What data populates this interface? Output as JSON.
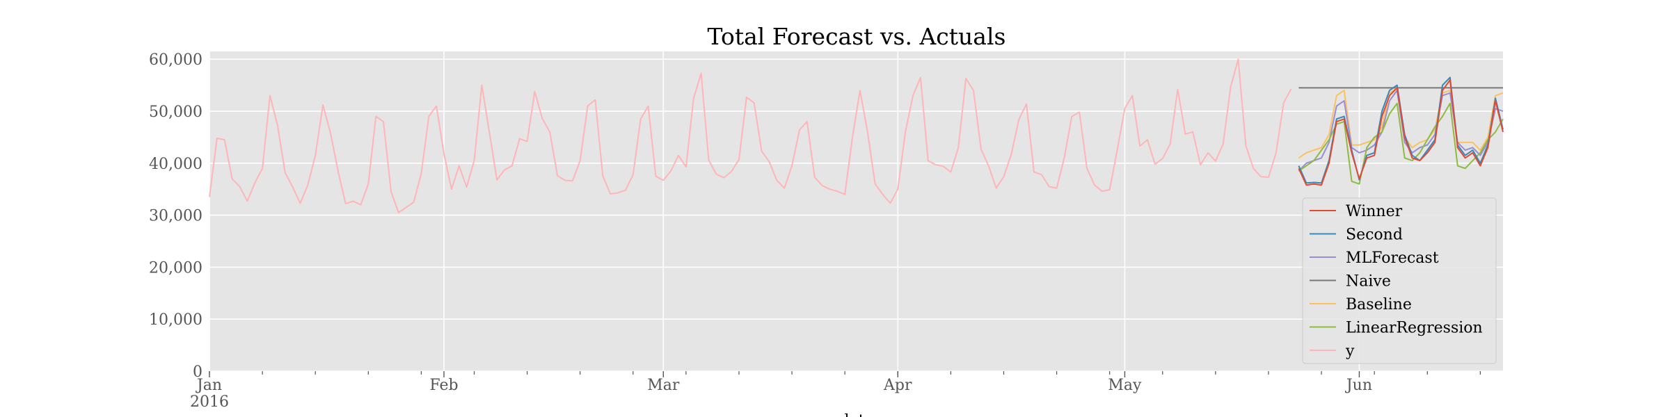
{
  "chart_data": {
    "type": "line",
    "title": "Total Forecast vs. Actuals",
    "xlabel": "date",
    "ylabel": "",
    "xlim": [
      "2016-01-01",
      "2016-06-20"
    ],
    "ylim": [
      0,
      61500
    ],
    "yticks": [
      0,
      10000,
      20000,
      30000,
      40000,
      50000,
      60000
    ],
    "ytick_labels": [
      "0",
      "10,000",
      "20,000",
      "30,000",
      "40,000",
      "50,000",
      "60,000"
    ],
    "xticks": [
      {
        "date": "2016-01-01",
        "label": "Jan",
        "sublabel": "2016"
      },
      {
        "date": "2016-02-01",
        "label": "Feb",
        "sublabel": ""
      },
      {
        "date": "2016-03-01",
        "label": "Mar",
        "sublabel": ""
      },
      {
        "date": "2016-04-01",
        "label": "Apr",
        "sublabel": ""
      },
      {
        "date": "2016-05-01",
        "label": "May",
        "sublabel": ""
      },
      {
        "date": "2016-06-01",
        "label": "Jun",
        "sublabel": ""
      }
    ],
    "grid": true,
    "legend_position": "lower-right",
    "background": "#e5e5e5",
    "forecast_start": "2016-05-24",
    "series": [
      {
        "name": "Winner",
        "color": "#e24a33",
        "values": [
          39000,
          35800,
          36000,
          35800,
          40000,
          48000,
          48500,
          42000,
          37000,
          41000,
          41500,
          49000,
          53000,
          54500,
          45000,
          41000,
          40500,
          42000,
          44000,
          54000,
          56000,
          43000,
          41000,
          42000,
          39500,
          43000,
          52000,
          46000
        ]
      },
      {
        "name": "Second",
        "color": "#348abd",
        "values": [
          39500,
          36200,
          36300,
          36200,
          40500,
          48500,
          49000,
          42500,
          36800,
          41500,
          42000,
          50000,
          54000,
          55000,
          45500,
          41500,
          40500,
          42500,
          44500,
          55000,
          56500,
          43500,
          41500,
          42500,
          40000,
          43500,
          52500,
          46500
        ]
      },
      {
        "name": "MLForecast",
        "color": "#988ed5",
        "values": [
          38500,
          40000,
          40500,
          41000,
          44000,
          51000,
          52000,
          43000,
          42000,
          42500,
          43500,
          46000,
          52000,
          54000,
          44000,
          42000,
          43000,
          43500,
          45500,
          53000,
          53500,
          44000,
          42500,
          43000,
          41500,
          44000,
          50500,
          50000
        ]
      },
      {
        "name": "Naive",
        "color": "#777777",
        "values": [
          54500,
          54500,
          54500,
          54500,
          54500,
          54500,
          54500,
          54500,
          54500,
          54500,
          54500,
          54500,
          54500,
          54500,
          54500,
          54500,
          54500,
          54500,
          54500,
          54500,
          54500,
          54500,
          54500,
          54500,
          54500,
          54500,
          54500,
          54500
        ]
      },
      {
        "name": "Baseline",
        "color": "#fbc15e",
        "values": [
          41000,
          42000,
          42500,
          43000,
          45500,
          53000,
          54000,
          43500,
          43500,
          44000,
          44500,
          47000,
          53500,
          54500,
          45000,
          43000,
          44000,
          44500,
          46500,
          53500,
          54000,
          44000,
          44000,
          44000,
          42500,
          45000,
          53000,
          53500
        ]
      },
      {
        "name": "LinearRegression",
        "color": "#8eba42",
        "values": [
          38500,
          39500,
          40500,
          42500,
          44500,
          47500,
          48000,
          36500,
          36000,
          43000,
          45000,
          46000,
          49500,
          51500,
          41000,
          40500,
          42000,
          44500,
          47000,
          49000,
          51500,
          39500,
          39000,
          40500,
          42000,
          44500,
          46000,
          48500
        ]
      },
      {
        "name": "y",
        "color": "#ffb5b8",
        "values": [
          33500,
          44800,
          44500,
          37000,
          35500,
          32700,
          36200,
          39000,
          53000,
          47300,
          38200,
          35400,
          32300,
          35800,
          41500,
          51200,
          45800,
          38500,
          32200,
          32700,
          32000,
          36000,
          49000,
          48000,
          34600,
          30500,
          31500,
          32500,
          38000,
          49000,
          51000,
          41800,
          35000,
          39500,
          35400,
          40500,
          55000,
          46000,
          36800,
          38700,
          39500,
          44700,
          44200,
          53800,
          48600,
          46000,
          37600,
          36700,
          36600,
          40500,
          51000,
          52200,
          37500,
          34100,
          34300,
          34800,
          37800,
          48500,
          51000,
          37500,
          36700,
          38500,
          41500,
          39300,
          52500,
          57300,
          40600,
          37900,
          37200,
          38400,
          40700,
          52700,
          51600,
          42300,
          40300,
          36700,
          35200,
          39500,
          46400,
          48000,
          37300,
          35700,
          35000,
          34600,
          34000,
          45000,
          54000,
          46000,
          36000,
          34000,
          32300,
          35000,
          46000,
          53000,
          56500,
          40500,
          39700,
          39400,
          38300,
          43000,
          56300,
          54000,
          42700,
          39500,
          35200,
          37400,
          41700,
          48400,
          51400,
          38300,
          37800,
          35500,
          35200,
          41000,
          49000,
          49800,
          39000,
          35800,
          34600,
          34900,
          42500,
          50500,
          53000,
          43300,
          44500,
          39800,
          40900,
          43700,
          54200,
          45600,
          46000,
          39700,
          42000,
          40400,
          43700,
          54700,
          60000,
          43400,
          39000,
          37400,
          37300,
          42000,
          51600,
          54300
        ]
      }
    ]
  }
}
